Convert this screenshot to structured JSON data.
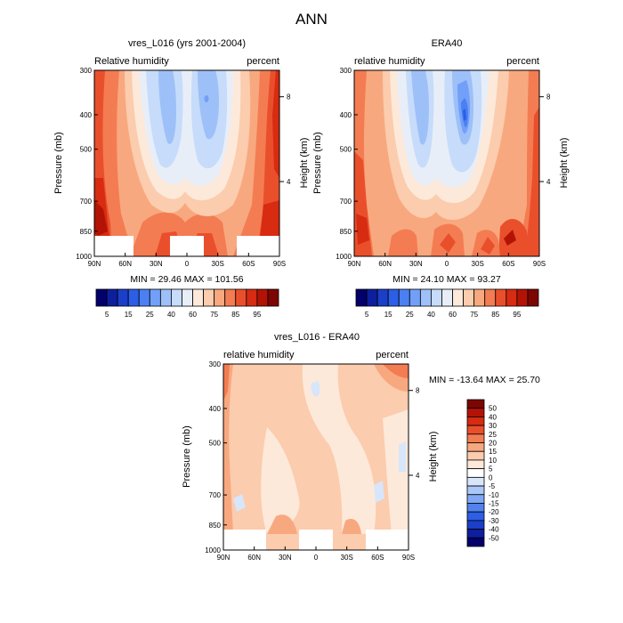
{
  "figure": {
    "title": "ANN"
  },
  "colors": {
    "frame": "#000000",
    "missing": "#ffffff"
  },
  "chart_data": [
    {
      "type": "contour",
      "title": "vres_L016 (yrs 2001-2004)",
      "left_label": "Relative humidity",
      "right_label": "percent",
      "ylabel": "Pressure (mb)",
      "ylabel_right": "Height (km)",
      "x_ticks": [
        "90N",
        "60N",
        "30N",
        "0",
        "30S",
        "60S",
        "90S"
      ],
      "x_values": [
        90,
        60,
        30,
        0,
        -30,
        -60,
        -90
      ],
      "y_ticks": [
        "300",
        "400",
        "500",
        "700",
        "850",
        "1000"
      ],
      "y_values": [
        300,
        400,
        500,
        700,
        850,
        1000
      ],
      "y_right_ticks": [
        "8",
        "4"
      ],
      "ylim": [
        300,
        1000
      ],
      "stats": "MIN = 29.46   MAX = 101.56",
      "min": 29.46,
      "max": 101.56,
      "colorbar": {
        "orientation": "horizontal",
        "labels": [
          "5",
          "15",
          "25",
          "40",
          "60",
          "75",
          "85",
          "95"
        ],
        "levels": [
          5,
          10,
          15,
          20,
          25,
          30,
          40,
          50,
          60,
          70,
          75,
          80,
          85,
          90,
          95
        ],
        "colors": [
          "#03006b",
          "#0d1f9d",
          "#1b3fc9",
          "#2c5ee6",
          "#4a80f2",
          "#729ff7",
          "#9ec0f8",
          "#c6dcfa",
          "#e8eef8",
          "#fde9da",
          "#fbccad",
          "#f8a87f",
          "#f47c52",
          "#ea4f2c",
          "#d72b12",
          "#b31305",
          "#7c0602"
        ]
      },
      "missing_regions_lat": [
        [
          90,
          60
        ],
        [
          15,
          -15
        ],
        [
          -60,
          -90
        ]
      ]
    },
    {
      "type": "contour",
      "title": "ERA40",
      "left_label": "relative humidity",
      "right_label": "percent",
      "ylabel": "Pressure (mb)",
      "ylabel_right": "Height (km)",
      "x_ticks": [
        "90N",
        "60N",
        "30N",
        "0",
        "30S",
        "60S",
        "90S"
      ],
      "x_values": [
        90,
        60,
        30,
        0,
        -30,
        -60,
        -90
      ],
      "y_ticks": [
        "300",
        "400",
        "500",
        "700",
        "850",
        "1000"
      ],
      "y_values": [
        300,
        400,
        500,
        700,
        850,
        1000
      ],
      "y_right_ticks": [
        "8",
        "4"
      ],
      "ylim": [
        300,
        1000
      ],
      "stats": "MIN = 24.10   MAX = 93.27",
      "min": 24.1,
      "max": 93.27,
      "colorbar": {
        "orientation": "horizontal",
        "labels": [
          "5",
          "15",
          "25",
          "40",
          "60",
          "75",
          "85",
          "95"
        ],
        "levels": [
          5,
          10,
          15,
          20,
          25,
          30,
          40,
          50,
          60,
          70,
          75,
          80,
          85,
          90,
          95
        ],
        "colors": [
          "#03006b",
          "#0d1f9d",
          "#1b3fc9",
          "#2c5ee6",
          "#4a80f2",
          "#729ff7",
          "#9ec0f8",
          "#c6dcfa",
          "#e8eef8",
          "#fde9da",
          "#fbccad",
          "#f8a87f",
          "#f47c52",
          "#ea4f2c",
          "#d72b12",
          "#b31305",
          "#7c0602"
        ]
      },
      "missing_regions_lat": []
    },
    {
      "type": "contour",
      "title": "vres_L016 - ERA40",
      "left_label": "relative humidity",
      "right_label": "percent",
      "ylabel": "Pressure (mb)",
      "ylabel_right": "Height (km)",
      "x_ticks": [
        "90N",
        "60N",
        "30N",
        "0",
        "30S",
        "60S",
        "90S"
      ],
      "x_values": [
        90,
        60,
        30,
        0,
        -30,
        -60,
        -90
      ],
      "y_ticks": [
        "300",
        "400",
        "500",
        "700",
        "850",
        "1000"
      ],
      "y_values": [
        300,
        400,
        500,
        700,
        850,
        1000
      ],
      "y_right_ticks": [
        "8",
        "4"
      ],
      "ylim": [
        300,
        1000
      ],
      "stats": "MIN = -13.64  MAX =  25.70",
      "min": -13.64,
      "max": 25.7,
      "colorbar": {
        "orientation": "vertical",
        "labels": [
          "50",
          "40",
          "30",
          "25",
          "20",
          "15",
          "10",
          "5",
          "0",
          "-5",
          "-10",
          "-15",
          "-20",
          "-30",
          "-40",
          "-50"
        ],
        "levels": [
          50,
          40,
          30,
          25,
          20,
          15,
          10,
          5,
          0,
          -5,
          -10,
          -15,
          -20,
          -30,
          -40,
          -50
        ],
        "colors": [
          "#7c0602",
          "#b31305",
          "#d72b12",
          "#ea4f2c",
          "#f47c52",
          "#f8a87f",
          "#fbccad",
          "#fde9da",
          "#ffffff",
          "#d7e6fa",
          "#aac8f7",
          "#80a8f4",
          "#5282ee",
          "#2c5ee6",
          "#1b3fc9",
          "#0d1f9d",
          "#03006b"
        ]
      },
      "missing_regions_lat": [
        [
          90,
          60
        ],
        [
          15,
          -15
        ],
        [
          -60,
          -90
        ]
      ]
    }
  ]
}
